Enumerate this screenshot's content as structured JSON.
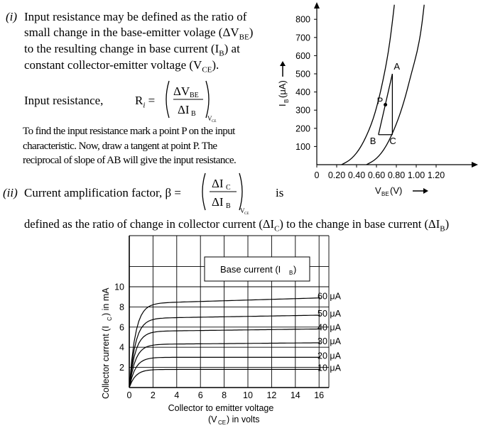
{
  "text": {
    "item_i_marker": "(i)",
    "item_i_lines": [
      "Input resistance may be defined as the ratio of",
      "small change in the base-emitter volage (ΔV",
      "to the resulting change in base current (I",
      "constant collector-emitter voltage (V"
    ],
    "item_i_subs": {
      "be": "BE",
      "b": "B",
      "ce": "CE"
    },
    "item_i_tails": {
      "line2": ")",
      "line3": ") at",
      "line4": ")."
    },
    "ri_label": "Input resistance,",
    "ri_symbol": "R",
    "ri_symbol_sub": "i",
    "ri_num": "ΔV",
    "ri_num_sub": "BE",
    "ri_den": "ΔI",
    "ri_den_sub": "B",
    "ri_vce_sub": "V",
    "ri_vce_subsub": "CE",
    "find_lines": [
      "To find the input resistance mark a point P on the input",
      "characteristic. Now, draw a tangent at point P. The",
      "reciprocal of slope of AB will give the input resistance."
    ],
    "item_ii_marker": "(ii)",
    "beta_label": "Current amplification factor, β =",
    "beta_num": "ΔI",
    "beta_num_sub": "C",
    "beta_den": "ΔI",
    "beta_den_sub": "B",
    "beta_is": "is",
    "defined_line": "defined as the ratio of change in collector current (ΔI",
    "defined_sub_c": "C",
    "defined_mid": ") to the change in base current (ΔI",
    "defined_sub_b": "B",
    "defined_end": ")"
  },
  "chart_data": [
    {
      "type": "line",
      "title": "",
      "xlabel": "V(V) →",
      "xlabel_main": "V",
      "xlabel_sub": "BE",
      "xlabel_tail": "(V)",
      "ylabel_main": "I",
      "ylabel_sub": "B",
      "ylabel_tail": "(μA)",
      "x_ticks": [
        "0",
        "0.20",
        "0.40",
        "0.60",
        "0.80",
        "1.00",
        "1.20"
      ],
      "y_ticks": [
        "100",
        "200",
        "300",
        "400",
        "500",
        "600",
        "700",
        "800"
      ],
      "xlim": [
        0,
        1.3
      ],
      "ylim": [
        0,
        850
      ],
      "series": [
        {
          "x": [
            0.25,
            0.35,
            0.45,
            0.55,
            0.62,
            0.68,
            0.72,
            0.75,
            0.78
          ],
          "y": [
            0,
            30,
            100,
            220,
            350,
            500,
            620,
            740,
            880
          ]
        },
        {
          "x": [
            0.5,
            0.6,
            0.7,
            0.8,
            0.88,
            0.95,
            1.01,
            1.05,
            1.08
          ],
          "y": [
            0,
            30,
            100,
            220,
            350,
            500,
            620,
            740,
            880
          ]
        }
      ],
      "annotations": [
        {
          "label": "A",
          "x": 0.76,
          "y": 500
        },
        {
          "label": "P",
          "x": 0.69,
          "y": 330
        },
        {
          "label": "B",
          "x": 0.62,
          "y": 165
        },
        {
          "label": "C",
          "x": 0.76,
          "y": 165
        }
      ]
    },
    {
      "type": "line",
      "title": "",
      "xlabel": "Collector to emitter voltage",
      "xlabel_line2_pre": "(V",
      "xlabel_line2_sub": "CE",
      "xlabel_line2_post": ") in volts",
      "ylabel_pre": "Collector current (I",
      "ylabel_sub": "C",
      "ylabel_post": ") in mA",
      "legend_title_pre": "Base current (I",
      "legend_title_sub": "B",
      "legend_title_post": ")",
      "x_ticks": [
        "0",
        "2",
        "4",
        "6",
        "8",
        "10",
        "12",
        "14",
        "16"
      ],
      "y_ticks": [
        "2",
        "4",
        "6",
        "8",
        "10"
      ],
      "xlim": [
        0,
        17
      ],
      "ylim": [
        0,
        13
      ],
      "grid": true,
      "series": [
        {
          "name": "10 μA",
          "sat": 1.8,
          "slope": 0.0
        },
        {
          "name": "20 μA",
          "sat": 3.0,
          "slope": 0.0
        },
        {
          "name": "30 μA",
          "sat": 4.3,
          "slope": 0.01
        },
        {
          "name": "40 μA",
          "sat": 5.6,
          "slope": 0.015
        },
        {
          "name": "50 μA",
          "sat": 6.9,
          "slope": 0.02
        },
        {
          "name": "60 μA",
          "sat": 8.4,
          "slope": 0.035
        }
      ]
    }
  ]
}
